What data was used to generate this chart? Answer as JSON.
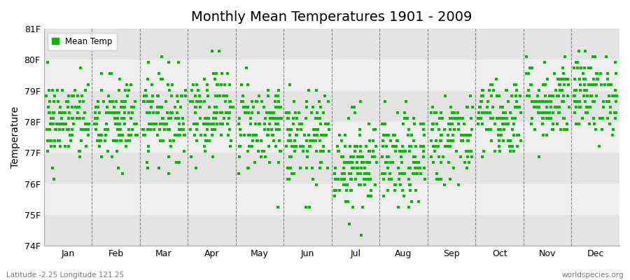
{
  "title": "Monthly Mean Temperatures 1901 - 2009",
  "ylabel": "Temperature",
  "xlabel": "",
  "months": [
    "Jan",
    "Feb",
    "Mar",
    "Apr",
    "May",
    "Jun",
    "Jul",
    "Aug",
    "Sep",
    "Oct",
    "Nov",
    "Dec"
  ],
  "ylim": [
    74.0,
    81.0
  ],
  "yticks": [
    74,
    75,
    76,
    77,
    78,
    79,
    80,
    81
  ],
  "ytick_labels": [
    "74F",
    "75F",
    "76F",
    "77F",
    "78F",
    "79F",
    "80F",
    "81F"
  ],
  "dot_color": "#00bb00",
  "background_color": "#f0f0f0",
  "band_colors_odd": "#f0f0f0",
  "band_colors_even": "#e4e4e4",
  "annotation_left": "Latitude -2.25 Longitude 121.25",
  "annotation_right": "worldspecies.org",
  "legend_label": "Mean Temp",
  "monthly_means": [
    78.0,
    78.0,
    78.2,
    78.4,
    77.9,
    77.4,
    76.7,
    76.7,
    77.5,
    78.2,
    78.7,
    78.9
  ],
  "monthly_stds": [
    0.7,
    0.75,
    0.7,
    0.7,
    0.75,
    0.75,
    0.8,
    0.75,
    0.7,
    0.65,
    0.65,
    0.65
  ],
  "n_years": 109,
  "seed": 42,
  "quantize": 0.18,
  "figsize": [
    9.0,
    4.0
  ],
  "dpi": 100
}
